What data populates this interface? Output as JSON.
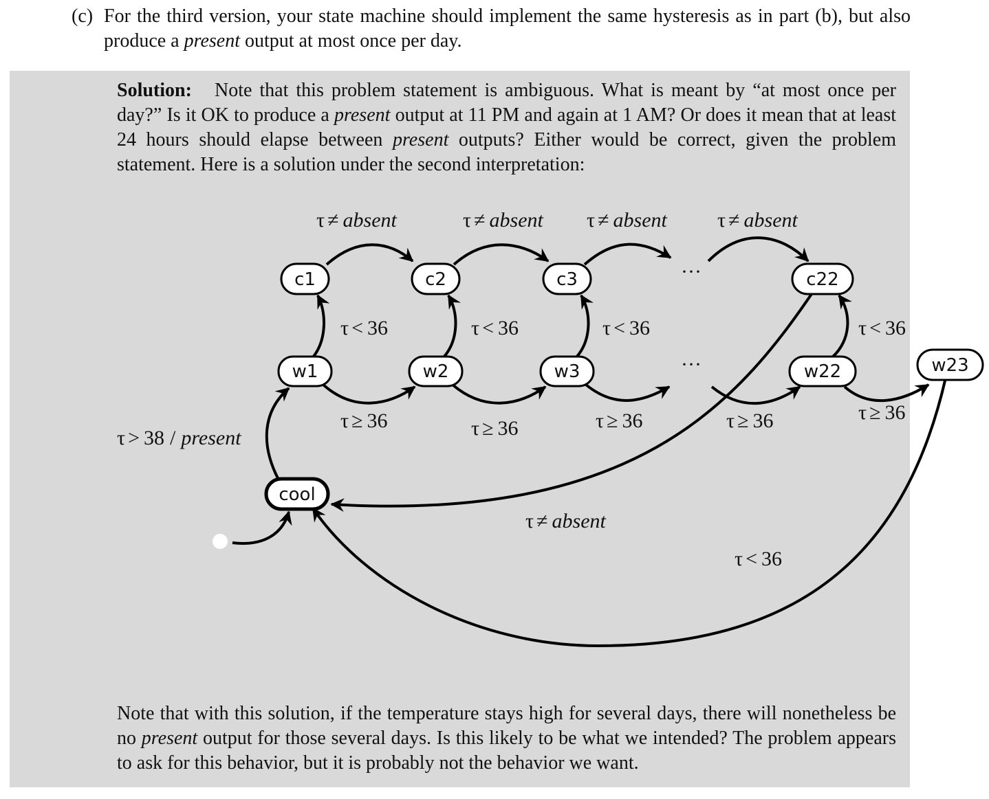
{
  "problem": {
    "label": "(c)",
    "text_a": "For the third version, your state machine should implement the same hysteresis as in part (b), but also produce a ",
    "text_em": "present",
    "text_b": " output at most once per day."
  },
  "solution": {
    "heading": "Solution:",
    "p1": "Note that this problem statement is ambiguous. What is meant by “at most once per day?” Is it OK to produce a ",
    "p1_em": "present",
    "p2": " output at 11 PM and again at 1 AM? Or does it mean that at least 24 hours should elapse between ",
    "p2_em": "present",
    "p3": " outputs? Either would be correct, given the problem statement. Here is a solution under the second interpretation:"
  },
  "note": {
    "p1": "Note that with this solution, if the temperature stays high for several days, there will nonetheless be no ",
    "p1_em": "present",
    "p2": " output for those several days. Is this likely to be what we intended? The problem appears to ask for this behavior, but it is probably not the behavior we want."
  },
  "diagram": {
    "states": {
      "c1": "c1",
      "c2": "c2",
      "c3": "c3",
      "c22": "c22",
      "w1": "w1",
      "w2": "w2",
      "w3": "w3",
      "w22": "w22",
      "w23": "w23",
      "cool": "cool"
    },
    "ellipsis": "···",
    "labels": {
      "tau": "τ",
      "neq": "≠",
      "lt": "<",
      "geq": "≥",
      "gt": ">",
      "absent": "absent",
      "present": "present",
      "num36": "36",
      "num38": "38",
      "slash": "/"
    }
  }
}
